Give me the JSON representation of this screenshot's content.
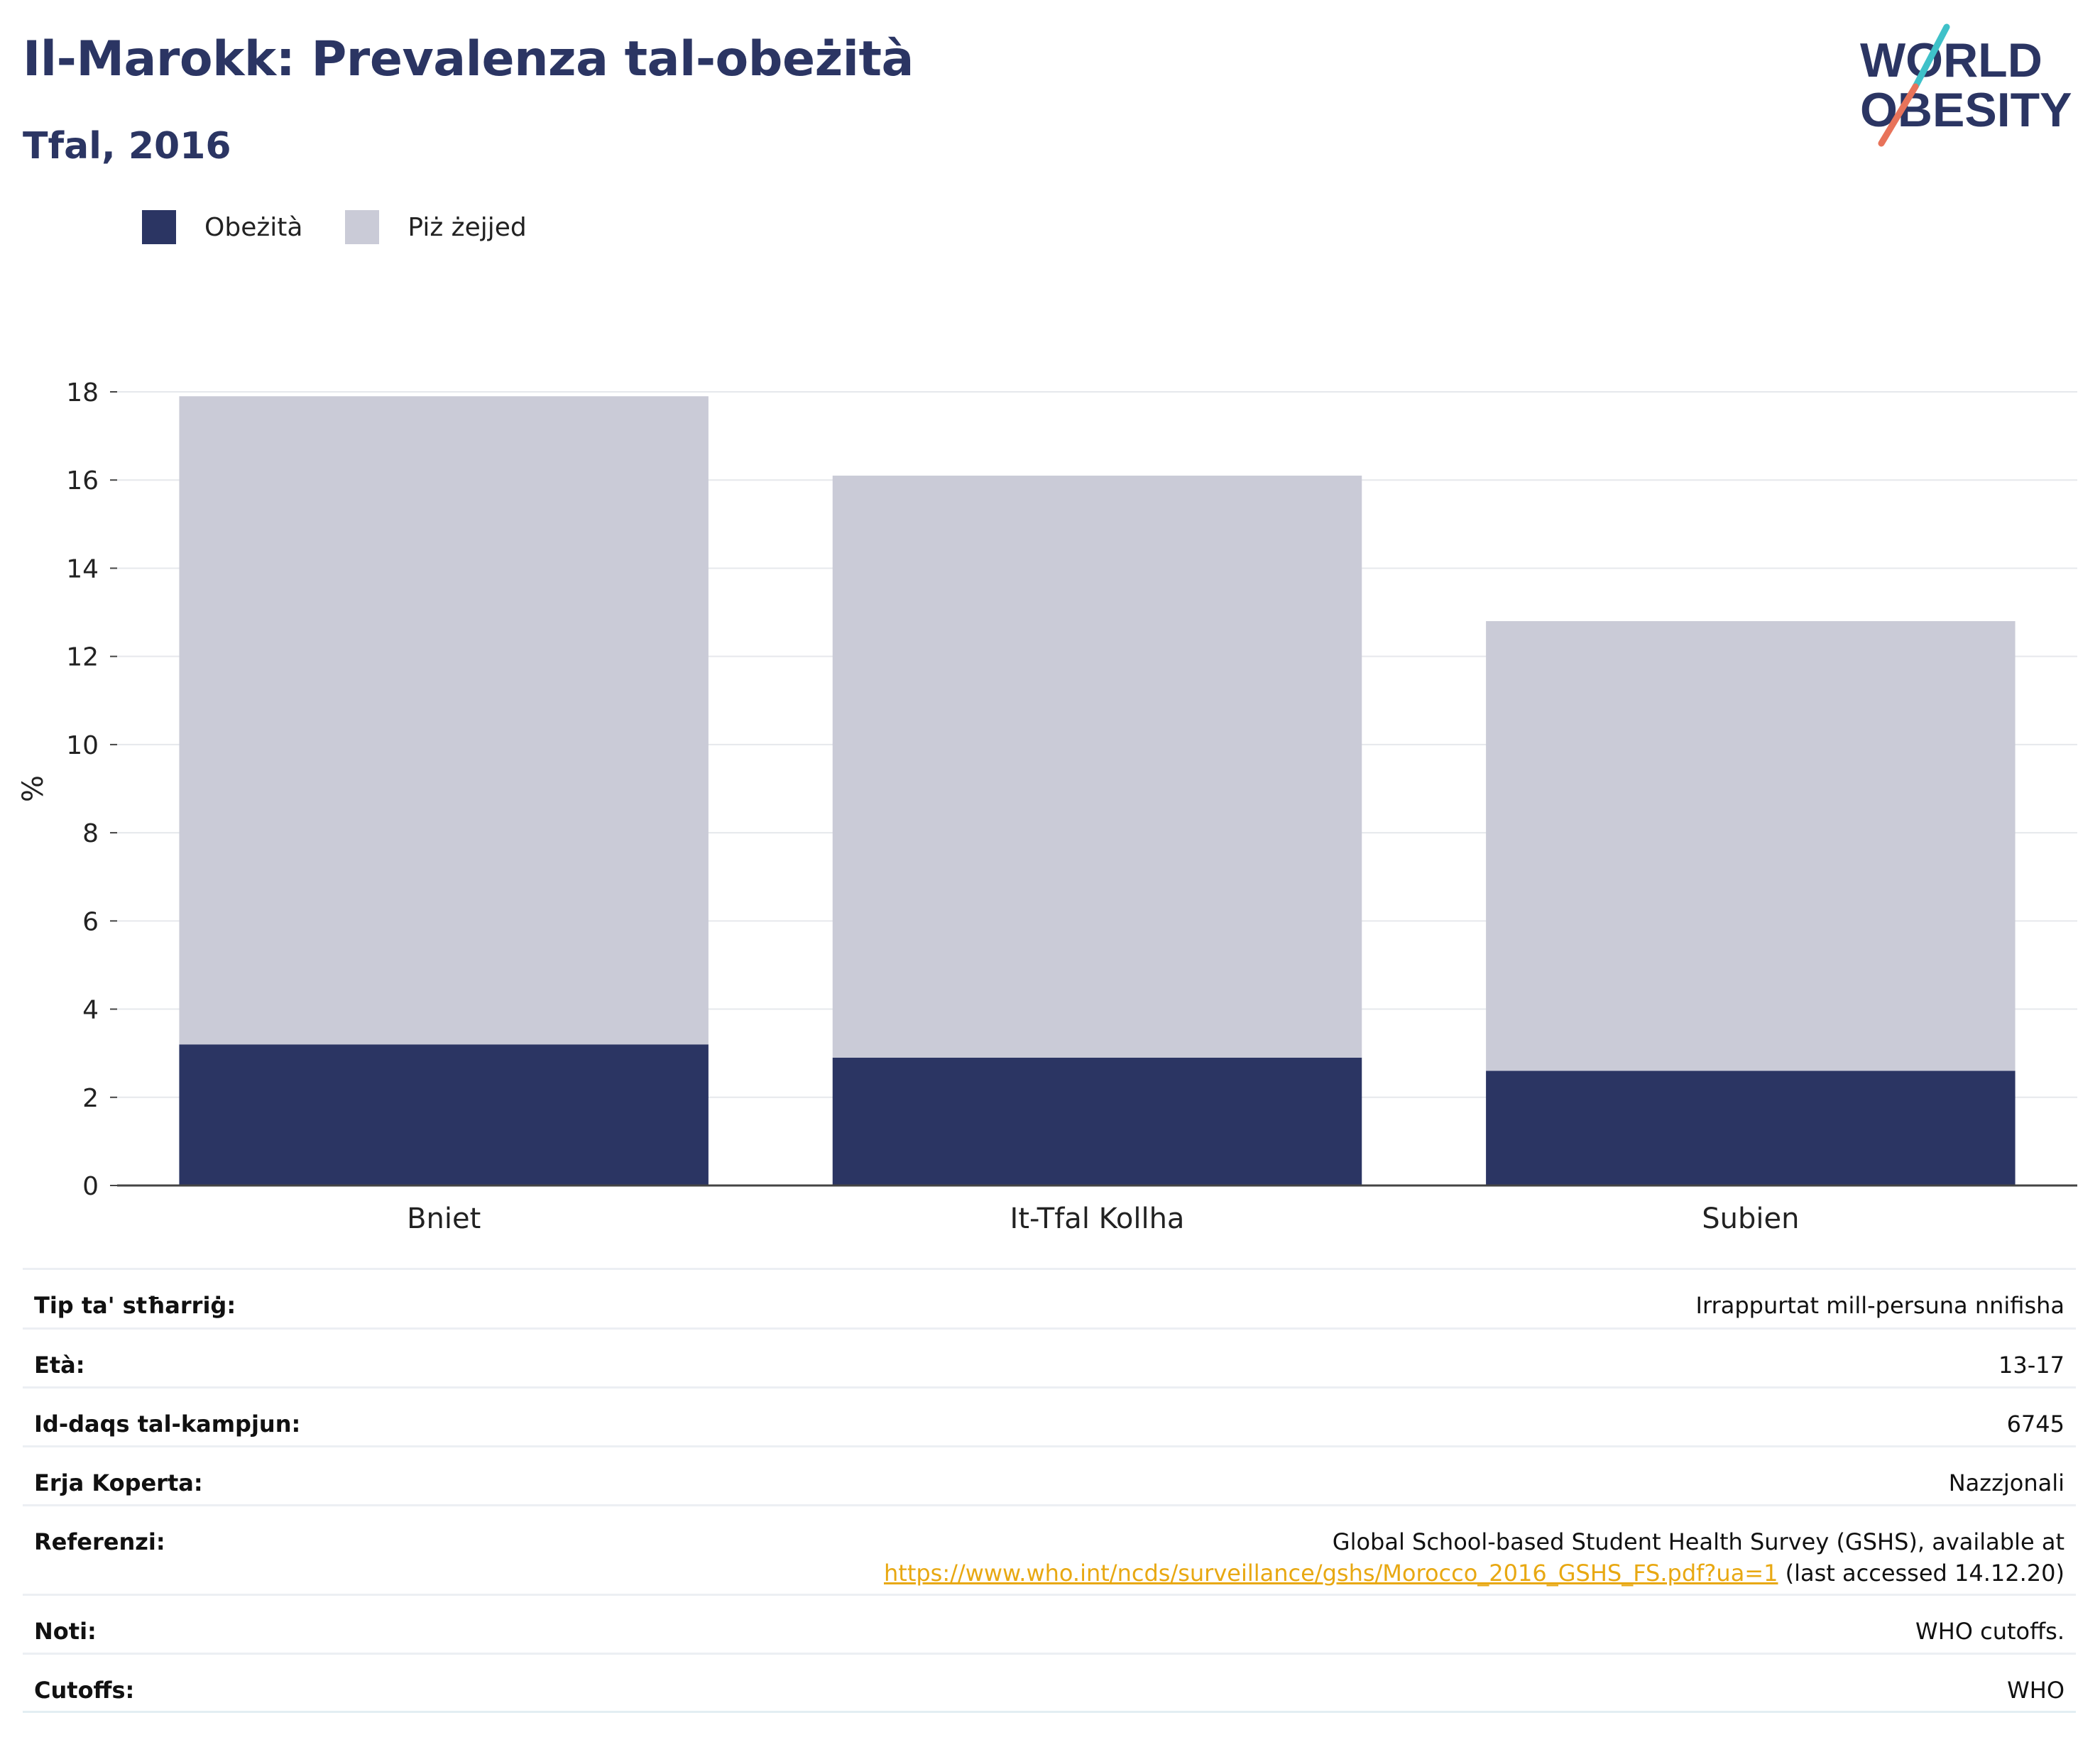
{
  "header": {
    "title": "Il-Marokk: Prevalenza tal-obeżità",
    "subtitle": "Tfal, 2016"
  },
  "logo": {
    "line1": "WORLD",
    "line2": "OBESITY",
    "colors": {
      "text": "#2b3563",
      "slash_top": "#3fc1c9",
      "slash_bottom": "#e8735a"
    }
  },
  "legend": {
    "items": [
      {
        "label": "Obeżità",
        "color": "#2b3563"
      },
      {
        "label": "Piż żejjed",
        "color": "#cacbd7"
      }
    ]
  },
  "chart_data": {
    "type": "bar",
    "stacked": true,
    "categories": [
      "Bniet",
      "It-Tfal Kollha",
      "Subien"
    ],
    "series": [
      {
        "name": "Obeżità",
        "color": "#2b3563",
        "values": [
          3.2,
          2.9,
          2.6
        ]
      },
      {
        "name": "Piż żejjed",
        "color": "#cacbd7",
        "values": [
          14.7,
          13.2,
          10.2
        ]
      }
    ],
    "ylabel": "%",
    "ylim": [
      0,
      18
    ],
    "yticks": [
      "0",
      "2",
      "4",
      "6",
      "8",
      "10",
      "12",
      "14",
      "16",
      "18"
    ],
    "grid": true,
    "legend_position": "top-left"
  },
  "meta": {
    "rows": [
      {
        "label": "Tip ta' stħarriġ:",
        "value": "Irrappurtat mill-persuna nnifisha"
      },
      {
        "label": "Età:",
        "value": "13-17"
      },
      {
        "label": "Id-daqs tal-kampjun:",
        "value": "6745"
      },
      {
        "label": "Erja Koperta:",
        "value": "Nazzjonali"
      },
      {
        "label": "Referenzi:",
        "value": "Global School-based Student Health Survey (GSHS), available at",
        "link": "https://www.who.int/ncds/surveillance/gshs/Morocco_2016_GSHS_FS.pdf?ua=1",
        "suffix": " (last accessed 14.12.20)"
      },
      {
        "label": "Noti:",
        "value": "WHO cutoffs."
      },
      {
        "label": "Cutoffs:",
        "value": "WHO"
      }
    ]
  }
}
